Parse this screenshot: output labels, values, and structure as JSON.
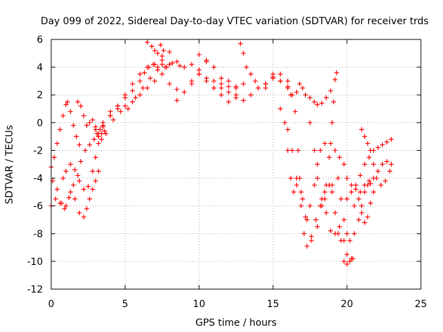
{
  "chart_data": {
    "type": "scatter",
    "title": "Day 099 of 2022, Sidereal Day-to-day VTEC variation (SDTVAR) for receiver trds",
    "xlabel": "GPS time / hours",
    "ylabel": "SDTVAR / TECUs",
    "xlim": [
      0,
      25
    ],
    "ylim": [
      -12,
      6
    ],
    "xticks": [
      0,
      5,
      10,
      15,
      20,
      25
    ],
    "yticks": [
      -12,
      -10,
      -8,
      -6,
      -4,
      -2,
      0,
      2,
      4,
      6
    ],
    "grid": true,
    "marker": "+",
    "color": "#ff0000",
    "series": [
      {
        "x": [
          0.0,
          0.2,
          0.4,
          0.6,
          0.8,
          1.0,
          1.1,
          1.3,
          1.5,
          1.7,
          1.9
        ],
        "y": [
          -3.2,
          -2.5,
          -1.5,
          -0.5,
          0.5,
          1.3,
          1.5,
          0.8,
          -0.2,
          -1.0,
          -1.6
        ]
      },
      {
        "x": [
          0.0,
          0.3,
          0.6,
          0.9,
          1.2,
          1.5,
          1.8,
          2.0,
          2.3,
          2.6,
          2.9,
          3.1,
          3.3,
          3.5
        ],
        "y": [
          -6.0,
          -5.5,
          -5.8,
          -6.2,
          -5.4,
          -4.5,
          -3.8,
          -2.8,
          -2.0,
          -1.6,
          -1.2,
          -0.8,
          -0.5,
          -0.2
        ]
      },
      {
        "x": [
          0.1,
          0.4,
          0.7,
          1.0,
          1.3,
          1.6,
          1.9,
          2.2,
          2.4,
          2.6,
          2.8,
          3.0,
          3.2
        ],
        "y": [
          -4.2,
          -4.8,
          -5.8,
          -6.0,
          -5.0,
          -5.5,
          -6.5,
          -6.8,
          -6.2,
          -5.5,
          -4.8,
          -4.2,
          -3.5
        ]
      },
      {
        "x": [
          0.8,
          1.0,
          1.3,
          1.6,
          1.9,
          2.2,
          2.5,
          2.8,
          3.0,
          3.2,
          3.4
        ],
        "y": [
          -4.0,
          -3.5,
          -3.0,
          -3.4,
          -4.2,
          -4.8,
          -4.6,
          -3.5,
          -2.5,
          -1.5,
          -0.8
        ]
      },
      {
        "x": [
          1.8,
          2.0,
          2.2,
          2.4,
          2.6,
          2.8,
          3.0,
          3.2,
          3.4,
          3.6
        ],
        "y": [
          1.5,
          1.2,
          0.5,
          -0.2,
          0.0,
          0.2,
          -0.3,
          -0.8,
          -1.2,
          -0.6
        ]
      },
      {
        "x": [
          3.0,
          3.5,
          4.0,
          4.5,
          5.0,
          5.5,
          6.0,
          6.5,
          7.0,
          7.5,
          8.0
        ],
        "y": [
          -0.5,
          -0.3,
          0.5,
          1.2,
          2.0,
          2.8,
          3.5,
          4.0,
          4.2,
          4.8,
          5.1
        ]
      },
      {
        "x": [
          3.2,
          3.7,
          4.2,
          4.7,
          5.2,
          5.7,
          6.2,
          6.7,
          7.2,
          7.7,
          8.2,
          8.7
        ],
        "y": [
          -1.0,
          -0.8,
          0.2,
          0.8,
          1.0,
          1.8,
          2.5,
          3.2,
          3.8,
          4.0,
          4.3,
          4.1
        ]
      },
      {
        "x": [
          3.5,
          4.0,
          4.5,
          5.0,
          5.5,
          6.0,
          6.5,
          7.0,
          7.5,
          8.0,
          8.5
        ],
        "y": [
          0.0,
          0.5,
          1.0,
          1.2,
          1.5,
          2.0,
          2.5,
          3.0,
          3.5,
          2.8,
          2.4
        ]
      },
      {
        "x": [
          4.0,
          4.5,
          5.0,
          5.5,
          6.0,
          6.3,
          6.6,
          6.9,
          7.2,
          7.5
        ],
        "y": [
          0.8,
          1.2,
          1.8,
          2.3,
          3.0,
          3.6,
          4.0,
          4.2,
          4.0,
          4.2
        ]
      },
      {
        "x": [
          6.5,
          6.8,
          7.0,
          7.2,
          7.4,
          7.6,
          7.8
        ],
        "y": [
          5.8,
          5.5,
          5.2,
          5.0,
          5.6,
          5.2,
          4.0
        ]
      },
      {
        "x": [
          7.5,
          8.0,
          8.5,
          9.0,
          9.5,
          10.0,
          10.5,
          11.0,
          11.5,
          12.0,
          12.5
        ],
        "y": [
          4.5,
          4.2,
          4.4,
          4.0,
          4.2,
          4.9,
          4.4,
          3.0,
          2.5,
          2.2,
          1.8
        ]
      },
      {
        "x": [
          8.5,
          9.0,
          9.5,
          10.0,
          10.5,
          11.0,
          11.5,
          12.0,
          12.5,
          13.0
        ],
        "y": [
          1.6,
          2.2,
          2.8,
          3.5,
          3.2,
          2.5,
          2.0,
          1.5,
          2.5,
          2.8
        ]
      },
      {
        "x": [
          9.5,
          10.0,
          10.5,
          11.0,
          11.5,
          12.0,
          12.5
        ],
        "y": [
          3.0,
          3.5,
          3.0,
          2.5,
          2.8,
          3.0,
          2.6
        ]
      },
      {
        "x": [
          10.0,
          10.5,
          11.0,
          11.5,
          12.0,
          12.5,
          13.0,
          13.5,
          14.0,
          14.5,
          15.0,
          15.5,
          16.0
        ],
        "y": [
          3.8,
          4.5,
          4.0,
          3.2,
          2.6,
          2.0,
          1.6,
          2.0,
          2.5,
          2.8,
          3.2,
          3.0,
          2.5
        ]
      },
      {
        "x": [
          12.8,
          13.0,
          13.2,
          13.5,
          13.8,
          14.0,
          14.5,
          15.0,
          15.5,
          16.0,
          16.2
        ],
        "y": [
          5.7,
          5.0,
          4.0,
          3.5,
          3.0,
          2.5,
          2.8,
          3.5,
          3.5,
          3.0,
          2.0
        ]
      },
      {
        "x": [
          14.5,
          15.0,
          15.5,
          16.0,
          16.3,
          16.6,
          16.8,
          17.0,
          17.2,
          17.5,
          17.8,
          18.0,
          18.3,
          18.6,
          18.9,
          19.2
        ],
        "y": [
          2.5,
          3.3,
          3.0,
          2.6,
          2.0,
          2.2,
          2.8,
          2.5,
          2.0,
          1.8,
          1.5,
          1.3,
          1.4,
          1.8,
          2.3,
          3.1
        ]
      },
      {
        "x": [
          15.5,
          15.8,
          16.0,
          16.2,
          16.4,
          16.6,
          16.8,
          17.0,
          17.3,
          17.6,
          18.0,
          18.3,
          18.6,
          18.9,
          19.1,
          19.3
        ],
        "y": [
          1.0,
          0.0,
          -2.0,
          -4.0,
          -5.0,
          -4.5,
          -4.0,
          -5.5,
          -7.0,
          -8.5,
          -7.5,
          -6.0,
          -4.5,
          -1.5,
          1.5,
          3.6
        ]
      },
      {
        "x": [
          16.0,
          16.3,
          16.6,
          16.9,
          17.2,
          17.5,
          17.8,
          18.0,
          18.2,
          18.5,
          18.8,
          19.0
        ],
        "y": [
          -0.5,
          -2.0,
          -4.0,
          -6.0,
          -6.8,
          -6.0,
          -4.5,
          -3.0,
          -2.0,
          -1.5,
          -2.5,
          -4.5
        ]
      },
      {
        "x": [
          16.5,
          16.7,
          16.9,
          17.1,
          17.3,
          17.6,
          17.9,
          18.2,
          18.5,
          18.8
        ],
        "y": [
          0.8,
          -2.0,
          -5.0,
          -8.0,
          -8.9,
          -8.2,
          -7.0,
          -6.0,
          -5.5,
          -4.5
        ]
      },
      {
        "x": [
          17.5,
          17.8,
          18.0,
          18.3,
          18.6,
          18.9,
          19.2,
          19.5,
          19.8,
          20.0,
          20.3
        ],
        "y": [
          0.0,
          -2.0,
          -4.0,
          -5.5,
          -6.5,
          -7.8,
          -8.0,
          -7.5,
          -8.5,
          -9.5,
          -9.8
        ]
      },
      {
        "x": [
          18.5,
          18.8,
          19.0,
          19.2,
          19.4,
          19.6,
          19.8,
          20.0,
          20.2,
          20.4
        ],
        "y": [
          -5.0,
          -4.5,
          -5.0,
          -6.5,
          -8.0,
          -8.5,
          -10.0,
          -10.2,
          -10.0,
          -9.8
        ]
      },
      {
        "x": [
          19.0,
          19.2,
          19.4,
          19.6,
          19.8,
          20.0,
          20.2,
          20.5,
          20.8,
          21.0,
          21.2,
          21.4,
          21.6
        ],
        "y": [
          0.0,
          -2.0,
          -4.0,
          -5.5,
          -7.0,
          -8.0,
          -8.5,
          -8.0,
          -7.0,
          -6.0,
          -5.0,
          -4.5,
          -4.4
        ]
      },
      {
        "x": [
          19.5,
          19.8,
          20.0,
          20.3,
          20.6,
          20.9,
          21.2,
          21.5,
          21.8,
          22.1,
          22.4,
          22.7,
          23.0
        ],
        "y": [
          -2.5,
          -3.0,
          -4.0,
          -4.5,
          -4.8,
          -5.0,
          -4.5,
          -4.2,
          -4.0,
          -3.5,
          -3.0,
          -2.8,
          -3.0
        ]
      },
      {
        "x": [
          20.0,
          20.3,
          20.6,
          20.9,
          21.2,
          21.5,
          21.8,
          22.1,
          22.4,
          22.7,
          23.0
        ],
        "y": [
          -5.5,
          -5.0,
          -4.5,
          -3.8,
          -3.0,
          -2.5,
          -2.0,
          -1.8,
          -1.6,
          -1.4,
          -1.2
        ]
      },
      {
        "x": [
          21.0,
          21.2,
          21.4,
          21.6,
          21.8,
          22.0,
          22.3,
          22.6,
          22.9
        ],
        "y": [
          -0.5,
          -1.0,
          -1.5,
          -2.0,
          -3.0,
          -4.0,
          -4.5,
          -4.2,
          -3.5
        ]
      },
      {
        "x": [
          20.5,
          20.8,
          21.0,
          21.2,
          21.4,
          21.6,
          21.8
        ],
        "y": [
          -6.0,
          -5.5,
          -6.5,
          -7.2,
          -6.8,
          -5.8,
          -5.0
        ]
      }
    ]
  }
}
